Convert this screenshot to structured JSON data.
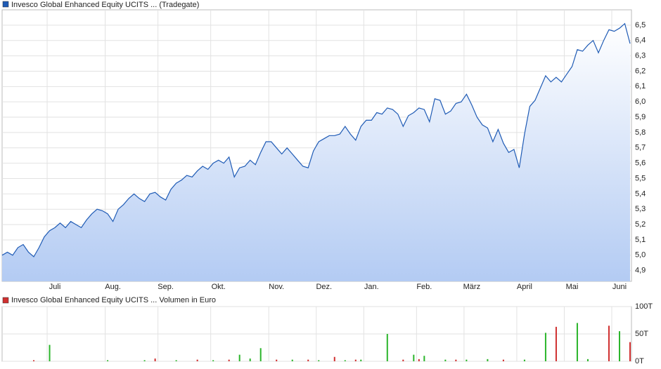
{
  "chart_data": [
    {
      "type": "area",
      "title": "Invesco Global Enhanced Equity UCITS ... (Tradegate)",
      "categories": [
        null,
        null,
        null,
        null,
        null,
        null,
        null,
        null,
        null,
        null,
        "Juli",
        null,
        null,
        null,
        null,
        null,
        null,
        null,
        null,
        null,
        null,
        "Aug.",
        null,
        null,
        null,
        null,
        null,
        null,
        null,
        null,
        null,
        "Sep.",
        null,
        null,
        null,
        null,
        null,
        null,
        null,
        null,
        null,
        "Okt.",
        null,
        null,
        null,
        null,
        null,
        null,
        null,
        null,
        null,
        null,
        "Nov.",
        null,
        null,
        null,
        null,
        null,
        null,
        null,
        null,
        "Dez.",
        null,
        null,
        null,
        null,
        null,
        null,
        null,
        null,
        "Jan.",
        null,
        null,
        null,
        null,
        null,
        null,
        null,
        null,
        null,
        "Feb.",
        null,
        null,
        null,
        null,
        null,
        null,
        null,
        null,
        "März",
        null,
        null,
        null,
        null,
        null,
        null,
        null,
        null,
        null,
        "April",
        null,
        null,
        null,
        null,
        null,
        null,
        null,
        null,
        "Mai",
        null,
        null,
        null,
        null,
        null,
        null,
        null,
        null,
        "Juni",
        null,
        null
      ],
      "series": [
        {
          "name": "Invesco Global Enhanced Equity UCITS ... (Tradegate)",
          "color": "#1f5bb5",
          "values": [
            5.0,
            5.02,
            5.0,
            5.05,
            5.07,
            5.02,
            4.99,
            5.05,
            5.12,
            5.16,
            5.18,
            5.21,
            5.18,
            5.22,
            5.2,
            5.18,
            5.23,
            5.27,
            5.3,
            5.29,
            5.27,
            5.22,
            5.3,
            5.33,
            5.37,
            5.4,
            5.37,
            5.35,
            5.4,
            5.41,
            5.38,
            5.36,
            5.43,
            5.47,
            5.49,
            5.52,
            5.51,
            5.55,
            5.58,
            5.56,
            5.6,
            5.62,
            5.6,
            5.64,
            5.51,
            5.57,
            5.58,
            5.62,
            5.59,
            5.67,
            5.74,
            5.74,
            5.7,
            5.66,
            5.7,
            5.66,
            5.62,
            5.58,
            5.57,
            5.68,
            5.74,
            5.76,
            5.78,
            5.78,
            5.79,
            5.84,
            5.79,
            5.75,
            5.84,
            5.88,
            5.88,
            5.93,
            5.92,
            5.96,
            5.95,
            5.92,
            5.84,
            5.91,
            5.93,
            5.96,
            5.95,
            5.87,
            6.02,
            6.01,
            5.92,
            5.94,
            5.99,
            6.0,
            6.05,
            5.98,
            5.9,
            5.85,
            5.83,
            5.74,
            5.82,
            5.73,
            5.67,
            5.69,
            5.57,
            5.79,
            5.97,
            6.01,
            6.09,
            6.17,
            6.13,
            6.16,
            6.13,
            6.18,
            6.23,
            6.34,
            6.33,
            6.37,
            6.4,
            6.32,
            6.4,
            6.47,
            6.46,
            6.48,
            6.51,
            6.38
          ]
        }
      ],
      "ylim": [
        4.83,
        6.6
      ],
      "yticks": [
        {
          "value": 4.9,
          "label": "4,9"
        },
        {
          "value": 5.0,
          "label": "5,0"
        },
        {
          "value": 5.1,
          "label": "5,1"
        },
        {
          "value": 5.2,
          "label": "5,2"
        },
        {
          "value": 5.3,
          "label": "5,3"
        },
        {
          "value": 5.4,
          "label": "5,4"
        },
        {
          "value": 5.5,
          "label": "5,5"
        },
        {
          "value": 5.6,
          "label": "5,6"
        },
        {
          "value": 5.7,
          "label": "5,7"
        },
        {
          "value": 5.8,
          "label": "5,8"
        },
        {
          "value": 5.9,
          "label": "5,9"
        },
        {
          "value": 6.0,
          "label": "6,0"
        },
        {
          "value": 6.1,
          "label": "6,1"
        },
        {
          "value": 6.2,
          "label": "6,2"
        },
        {
          "value": 6.3,
          "label": "6,3"
        },
        {
          "value": 6.4,
          "label": "6,4"
        },
        {
          "value": 6.5,
          "label": "6,5"
        }
      ],
      "grid": true
    },
    {
      "type": "bar",
      "title": "Invesco Global Enhanced Equity UCITS ... Volumen in Euro",
      "series": [
        {
          "color": "#2bb52b",
          "values": [
            0,
            0,
            0,
            0,
            0,
            0,
            0,
            0,
            0,
            30,
            0,
            0,
            0,
            0,
            0,
            0,
            0,
            0,
            0,
            0,
            2,
            0,
            0,
            0,
            0,
            0,
            0,
            2,
            0,
            0,
            0,
            0,
            0,
            2,
            0,
            0,
            0,
            0,
            0,
            0,
            2,
            0,
            0,
            0,
            0,
            12,
            0,
            5,
            0,
            24,
            0,
            0,
            0,
            0,
            0,
            3,
            0,
            0,
            0,
            0,
            2,
            0,
            0,
            0,
            0,
            2,
            0,
            0,
            3,
            0,
            0,
            0,
            0,
            50,
            0,
            0,
            0,
            0,
            12,
            0,
            10,
            0,
            0,
            0,
            3,
            0,
            0,
            0,
            3,
            0,
            0,
            0,
            4,
            0,
            0,
            0,
            0,
            0,
            0,
            3,
            0,
            0,
            0,
            52,
            0,
            0,
            0,
            0,
            0,
            70,
            0,
            4,
            0,
            0,
            0,
            0,
            0,
            55,
            0,
            0
          ]
        },
        {
          "color": "#d03030",
          "values": [
            0,
            0,
            0,
            0,
            0,
            0,
            2,
            0,
            0,
            0,
            0,
            0,
            0,
            0,
            0,
            0,
            0,
            0,
            0,
            0,
            0,
            0,
            0,
            0,
            0,
            0,
            0,
            0,
            0,
            5,
            0,
            0,
            0,
            0,
            0,
            0,
            0,
            3,
            0,
            0,
            0,
            0,
            0,
            3,
            0,
            0,
            0,
            0,
            0,
            0,
            0,
            0,
            3,
            0,
            0,
            0,
            0,
            0,
            3,
            0,
            0,
            0,
            0,
            8,
            0,
            0,
            0,
            3,
            0,
            0,
            0,
            0,
            0,
            0,
            0,
            0,
            3,
            0,
            0,
            4,
            0,
            0,
            0,
            0,
            0,
            0,
            3,
            0,
            0,
            0,
            0,
            0,
            0,
            0,
            0,
            3,
            0,
            0,
            0,
            0,
            0,
            0,
            0,
            0,
            0,
            63,
            0,
            0,
            0,
            0,
            0,
            0,
            0,
            0,
            0,
            65,
            0,
            0,
            0,
            35
          ]
        }
      ],
      "ylim": [
        0,
        100
      ],
      "yticks": [
        {
          "value": 0,
          "label": "0T"
        },
        {
          "value": 50,
          "label": "50T"
        },
        {
          "value": 100,
          "label": "100T"
        }
      ],
      "grid": true
    }
  ]
}
